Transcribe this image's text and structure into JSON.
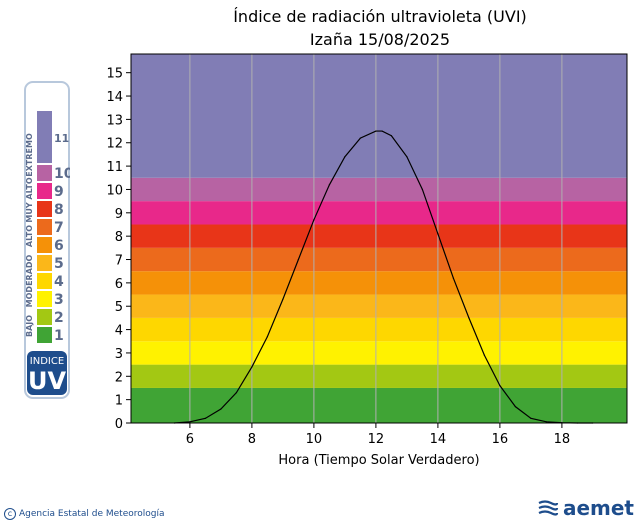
{
  "chart_data": {
    "type": "area",
    "title": "Índice de radiación ultravioleta (UVI)",
    "subtitle": "Izaña 15/08/2025",
    "xlabel": "Hora (Tiempo Solar Verdadero)",
    "ylabel": "",
    "xlim": [
      4.1,
      20.1
    ],
    "ylim": [
      0,
      15.8
    ],
    "xticks": [
      6,
      8,
      10,
      12,
      14,
      16,
      18
    ],
    "yticks": [
      0,
      1,
      2,
      3,
      4,
      5,
      6,
      7,
      8,
      9,
      10,
      11,
      12,
      13,
      14,
      15
    ],
    "grid": "vertical",
    "bands": [
      {
        "from": 0,
        "to": 1.5,
        "color": "#40a435"
      },
      {
        "from": 1.5,
        "to": 2.5,
        "color": "#a3c813"
      },
      {
        "from": 2.5,
        "to": 3.5,
        "color": "#fff200"
      },
      {
        "from": 3.5,
        "to": 4.5,
        "color": "#fed700"
      },
      {
        "from": 4.5,
        "to": 5.5,
        "color": "#fbb719"
      },
      {
        "from": 5.5,
        "to": 6.5,
        "color": "#f59108"
      },
      {
        "from": 6.5,
        "to": 7.5,
        "color": "#ec6a1c"
      },
      {
        "from": 7.5,
        "to": 8.5,
        "color": "#e83518"
      },
      {
        "from": 8.5,
        "to": 9.5,
        "color": "#e8288a"
      },
      {
        "from": 9.5,
        "to": 10.5,
        "color": "#b763a3"
      },
      {
        "from": 10.5,
        "to": 15.8,
        "color": "#817db5"
      }
    ],
    "series": [
      {
        "color": "#000000",
        "x": [
          5.5,
          6.0,
          6.5,
          7.0,
          7.5,
          8.0,
          8.5,
          9.0,
          9.5,
          10.0,
          10.5,
          11.0,
          11.5,
          12.0,
          12.2,
          12.5,
          13.0,
          13.5,
          14.0,
          14.5,
          15.0,
          15.5,
          16.0,
          16.5,
          17.0,
          17.5,
          18.0,
          18.5,
          19.0
        ],
        "y": [
          0.0,
          0.05,
          0.2,
          0.6,
          1.3,
          2.4,
          3.7,
          5.3,
          7.0,
          8.7,
          10.2,
          11.4,
          12.2,
          12.5,
          12.5,
          12.3,
          11.4,
          10.0,
          8.1,
          6.2,
          4.5,
          2.9,
          1.6,
          0.7,
          0.2,
          0.05,
          0.01,
          0.0,
          0.0
        ]
      }
    ]
  },
  "legend": {
    "bottom_label": "INDICE",
    "uv_label": "UV",
    "levels": [
      {
        "num": "1",
        "color": "#40a435"
      },
      {
        "num": "2",
        "color": "#a3c813"
      },
      {
        "num": "3",
        "color": "#fff200"
      },
      {
        "num": "4",
        "color": "#fed700"
      },
      {
        "num": "5",
        "color": "#fbb719"
      },
      {
        "num": "6",
        "color": "#f59108"
      },
      {
        "num": "7",
        "color": "#ec6a1c"
      },
      {
        "num": "8",
        "color": "#e83518"
      },
      {
        "num": "9",
        "color": "#e8288a"
      },
      {
        "num": "10",
        "color": "#b763a3"
      },
      {
        "num": "11+",
        "color": "#817db5"
      }
    ],
    "categories": [
      "BAJO",
      "MODERADO",
      "ALTO",
      "MUY ALTO",
      "EXTREMO"
    ]
  },
  "footer": {
    "left_text": "Agencia Estatal de Meteorología",
    "right_text": "aemet"
  }
}
